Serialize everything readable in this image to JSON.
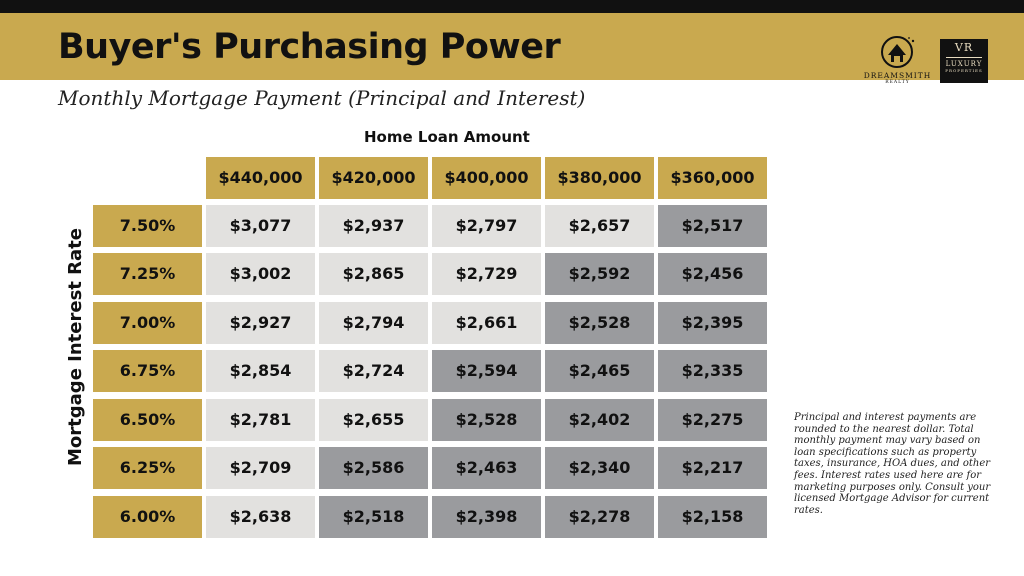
{
  "header": {
    "title": "Buyer's Purchasing Power",
    "subtitle": "Monthly Mortgage Payment (Principal and Interest)",
    "logo_dreamsmith": {
      "name": "DREAMSMITH",
      "sub": "REALTY"
    },
    "logo_vr": {
      "monogram": "VR",
      "line1": "LUXURY",
      "line2": "PROPERTIES"
    }
  },
  "table": {
    "column_axis_label": "Home Loan Amount",
    "row_axis_label": "Mortgage Interest Rate",
    "columns": [
      "$440,000",
      "$420,000",
      "$400,000",
      "$380,000",
      "$360,000"
    ],
    "rows": [
      {
        "rate": "7.50%",
        "values": [
          "$3,077",
          "$2,937",
          "$2,797",
          "$2,657",
          "$2,517"
        ],
        "shade": [
          "light",
          "light",
          "light",
          "light",
          "dark"
        ]
      },
      {
        "rate": "7.25%",
        "values": [
          "$3,002",
          "$2,865",
          "$2,729",
          "$2,592",
          "$2,456"
        ],
        "shade": [
          "light",
          "light",
          "light",
          "dark",
          "dark"
        ]
      },
      {
        "rate": "7.00%",
        "values": [
          "$2,927",
          "$2,794",
          "$2,661",
          "$2,528",
          "$2,395"
        ],
        "shade": [
          "light",
          "light",
          "light",
          "dark",
          "dark"
        ]
      },
      {
        "rate": "6.75%",
        "values": [
          "$2,854",
          "$2,724",
          "$2,594",
          "$2,465",
          "$2,335"
        ],
        "shade": [
          "light",
          "light",
          "dark",
          "dark",
          "dark"
        ]
      },
      {
        "rate": "6.50%",
        "values": [
          "$2,781",
          "$2,655",
          "$2,528",
          "$2,402",
          "$2,275"
        ],
        "shade": [
          "light",
          "light",
          "dark",
          "dark",
          "dark"
        ]
      },
      {
        "rate": "6.25%",
        "values": [
          "$2,709",
          "$2,586",
          "$2,463",
          "$2,340",
          "$2,217"
        ],
        "shade": [
          "light",
          "dark",
          "dark",
          "dark",
          "dark"
        ]
      },
      {
        "rate": "6.00%",
        "values": [
          "$2,638",
          "$2,518",
          "$2,398",
          "$2,278",
          "$2,158"
        ],
        "shade": [
          "light",
          "dark",
          "dark",
          "dark",
          "dark"
        ]
      }
    ]
  },
  "disclaimer": "Principal and interest payments are rounded to the nearest dollar. Total monthly payment may vary based on loan specifications such as property taxes, insurance, HOA dues, and other fees. Interest rates used here are for marketing purposes only. Consult your licensed Mortgage Advisor for current rates.",
  "colors": {
    "gold": "#c9a94f",
    "light_cell": "#e2e1df",
    "dark_cell": "#9a9b9e",
    "top_bar": "#111111"
  }
}
